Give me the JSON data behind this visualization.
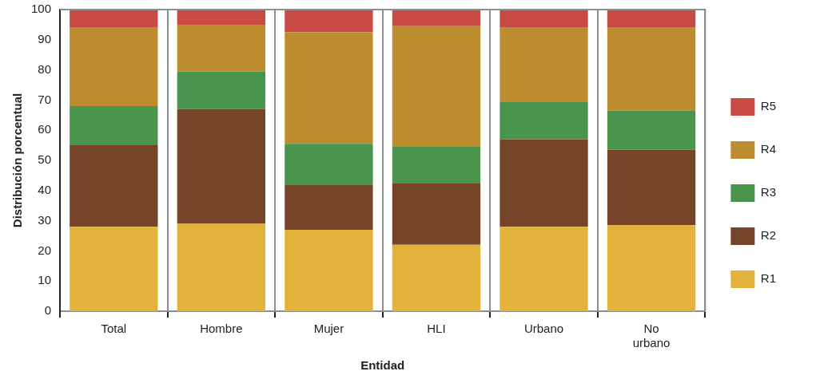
{
  "chart_data": {
    "type": "bar",
    "stacked": true,
    "xlabel": "Entidad",
    "ylabel": "Distribución porcentual",
    "categories": [
      "Total",
      "Hombre",
      "Mujer",
      "HLI",
      "Urbano",
      "No urbano"
    ],
    "series": [
      {
        "name": "R1",
        "color": "#e3b23a",
        "values": [
          28,
          29,
          27,
          22,
          28,
          28.5
        ]
      },
      {
        "name": "R2",
        "color": "#764428",
        "values": [
          27,
          38,
          15,
          20.5,
          29,
          25
        ]
      },
      {
        "name": "R3",
        "color": "#4a954e",
        "values": [
          13,
          12.5,
          13.5,
          12,
          12.5,
          13
        ]
      },
      {
        "name": "R4",
        "color": "#bd8c2f",
        "values": [
          26,
          15.5,
          37,
          40,
          24.5,
          27.5
        ]
      },
      {
        "name": "R5",
        "color": "#c84a42",
        "values": [
          6,
          5,
          7.5,
          5.5,
          6,
          6
        ]
      }
    ],
    "ylim": [
      0,
      100
    ],
    "yticks": [
      0,
      10,
      20,
      30,
      40,
      50,
      60,
      70,
      80,
      90,
      100
    ],
    "grid": "x",
    "legend": "right"
  }
}
